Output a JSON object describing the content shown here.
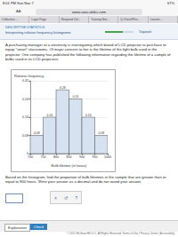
{
  "status_bar": {
    "time": "8:01 PM  Sun Nov 7",
    "battery": "67%"
  },
  "browser": {
    "text_size": "AA",
    "url": "www-awu.aleks.com",
    "tabs": [
      "Collection ...",
      "Login Page",
      "Respond Onl...",
      "Tutoring Not...",
      "Q.CheckPhis...",
      "Learnin..."
    ]
  },
  "header": {
    "topic": "DESCRIPTIVE STATISTICS",
    "title": "Interpreting relative frequency histograms",
    "user": "Tatyanah"
  },
  "problem": {
    "intro": "A purchasing manager at a university is investigating which brand of LCD projector to purchase to equip \"smart\" classrooms. Of major concern to her is the lifetime of the light bulb used in the projector. One company has published the following information regarding the lifetime of a sample of bulbs used in its LCD projectors:",
    "question": "Based on the histogram, find the proportion of bulb lifetimes in the sample that are greater than or equal to 900 hours. Write your answer as a decimal and do not round your answer."
  },
  "chart_data": {
    "type": "histogram",
    "ylabel": "Relative frequency",
    "xlabel": "Bulb lifetime (in hours)",
    "bins": [
      700,
      750,
      800,
      850,
      900,
      950,
      1000
    ],
    "values": [
      0.08,
      0.16,
      0.28,
      0.24,
      0.16,
      0.08
    ],
    "color": "#d6e2ef",
    "xlim": [
      700,
      1000
    ],
    "xticks": [
      700,
      750,
      800,
      850,
      900,
      950,
      1000
    ],
    "ylim": [
      0,
      0.32
    ],
    "yticks": [
      0,
      0.08,
      0.16,
      0.24,
      0.32
    ],
    "grid": true,
    "data_labels": true
  },
  "tools": [
    "×",
    "↺",
    "?"
  ],
  "bottom_bar": {
    "explanation": "Explanation",
    "check": "Check"
  },
  "footer": "© 2021 McGraw Hill LLC. All Rights Reserved.   Terms of Use  |  Privacy Center  |  Accessibility"
}
